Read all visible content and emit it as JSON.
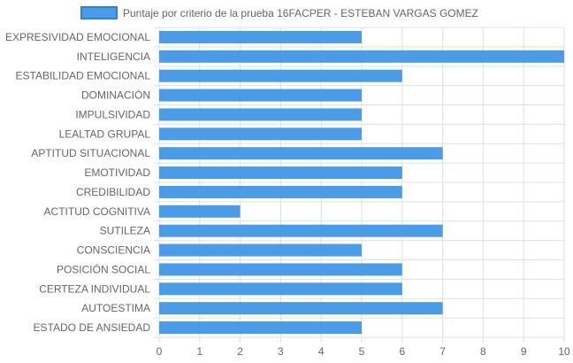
{
  "chart_data": {
    "type": "bar",
    "orientation": "horizontal",
    "title": "",
    "xlabel": "",
    "ylabel": "",
    "categories": [
      "EXPRESIVIDAD EMOCIONAL",
      "INTELIGENCIA",
      "ESTABILIDAD EMOCIONAL",
      "DOMINACIÓN",
      "IMPULSIVIDAD",
      "LEALTAD GRUPAL",
      "APTITUD SITUACIONAL",
      "EMOTIVIDAD",
      "CREDIBILIDAD",
      "ACTITUD COGNITIVA",
      "SUTILEZA",
      "CONSCIENCIA",
      "POSICIÓN SOCIAL",
      "CERTEZA INDIVIDUAL",
      "AUTOESTIMA",
      "ESTADO DE ANSIEDAD"
    ],
    "series": [
      {
        "name": "Puntaje por criterio de la prueba 16FACPER - ESTEBAN VARGAS GOMEZ",
        "values": [
          5,
          10,
          6,
          5,
          5,
          5,
          7,
          6,
          6,
          2,
          7,
          5,
          6,
          6,
          7,
          5
        ]
      }
    ],
    "xlim": [
      0,
      10
    ],
    "x_ticks": [
      "0",
      "1",
      "2",
      "3",
      "4",
      "5",
      "6",
      "7",
      "8",
      "9",
      "10"
    ],
    "grid": true,
    "legend_position": "top",
    "colors": {
      "bar_fill": "#4a9be8",
      "bar_stroke": "#2f80d8",
      "grid": "#e0e0e0",
      "text": "#666666"
    }
  }
}
